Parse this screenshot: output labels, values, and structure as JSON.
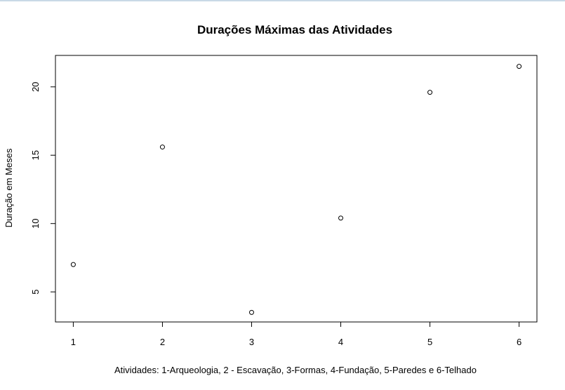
{
  "chart_data": {
    "type": "scatter",
    "title": "Durações Máximas das Atividades",
    "xlabel": "Atividades: 1-Arqueologia, 2 - Escavação, 3-Formas, 4-Fundação, 5-Paredes e 6-Telhado",
    "ylabel": "Duração em Meses",
    "x": [
      1,
      2,
      3,
      4,
      5,
      6
    ],
    "y": [
      7.0,
      15.6,
      3.5,
      10.4,
      19.6,
      21.5
    ],
    "xlim": [
      0.8,
      6.2
    ],
    "ylim": [
      2.8,
      22.3
    ],
    "xticks": [
      1,
      2,
      3,
      4,
      5,
      6
    ],
    "yticks": [
      5,
      10,
      15,
      20
    ],
    "marker": "open-circle",
    "grid": false,
    "legend": "none",
    "colors": {
      "points": "#000000",
      "axes": "#000000",
      "background": "#ffffff"
    }
  }
}
